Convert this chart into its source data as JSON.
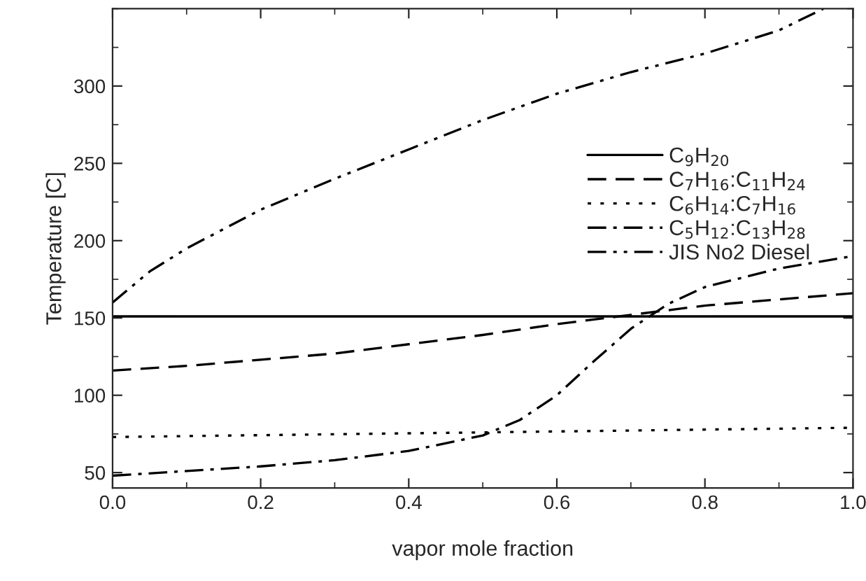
{
  "chart_data": {
    "type": "line",
    "xlabel": "vapor mole fraction",
    "ylabel": "Temperature [C]",
    "xlim": [
      0.0,
      1.0
    ],
    "xticks": [
      {
        "value": 0.0,
        "label": "0.0"
      },
      0.2,
      0.4,
      0.6,
      0.8,
      {
        "value": 1.0,
        "label": "1.0"
      }
    ],
    "ylim": [
      40,
      350
    ],
    "yticks": [
      50,
      100,
      150,
      200,
      250,
      300
    ],
    "grid": false,
    "legend": "right",
    "marker": "none",
    "series": [
      {
        "name": "C$_{9}$H$_{20}$",
        "color": "#000000",
        "line_style": "solid",
        "x": [
          0.0,
          1.0
        ],
        "values": [
          151,
          151
        ]
      },
      {
        "name": "C$_{7}$H$_{16}$:C$_{11}$H$_{24}$",
        "color": "#000000",
        "line_style": "dashed",
        "x": [
          0.0,
          0.1,
          0.2,
          0.3,
          0.4,
          0.5,
          0.6,
          0.7,
          0.8,
          0.9,
          1.0
        ],
        "values": [
          116,
          119,
          123,
          127,
          133,
          139,
          146,
          152,
          158,
          162,
          166
        ]
      },
      {
        "name": "C$_{6}$H$_{14}$:C$_{7}$H$_{16}$",
        "color": "#000000",
        "line_style": "dotted",
        "x": [
          0.0,
          0.5,
          1.0
        ],
        "values": [
          73,
          76,
          79
        ]
      },
      {
        "name": "C$_{5}$H$_{12}$:C$_{13}$H$_{28}$",
        "color": "#000000",
        "line_style": "dashdot",
        "x": [
          0.0,
          0.1,
          0.2,
          0.3,
          0.4,
          0.5,
          0.55,
          0.6,
          0.65,
          0.7,
          0.75,
          0.8,
          0.9,
          1.0
        ],
        "values": [
          48,
          51,
          54,
          58,
          64,
          74,
          84,
          100,
          122,
          143,
          159,
          170,
          182,
          190
        ]
      },
      {
        "name": "JIS No2 Diesel",
        "color": "#000000",
        "line_style": "dashdotdot",
        "x": [
          0.0,
          0.05,
          0.1,
          0.2,
          0.3,
          0.4,
          0.5,
          0.6,
          0.7,
          0.8,
          0.9,
          0.96
        ],
        "values": [
          160,
          180,
          195,
          220,
          240,
          259,
          278,
          295,
          309,
          321,
          336,
          350
        ]
      }
    ]
  }
}
